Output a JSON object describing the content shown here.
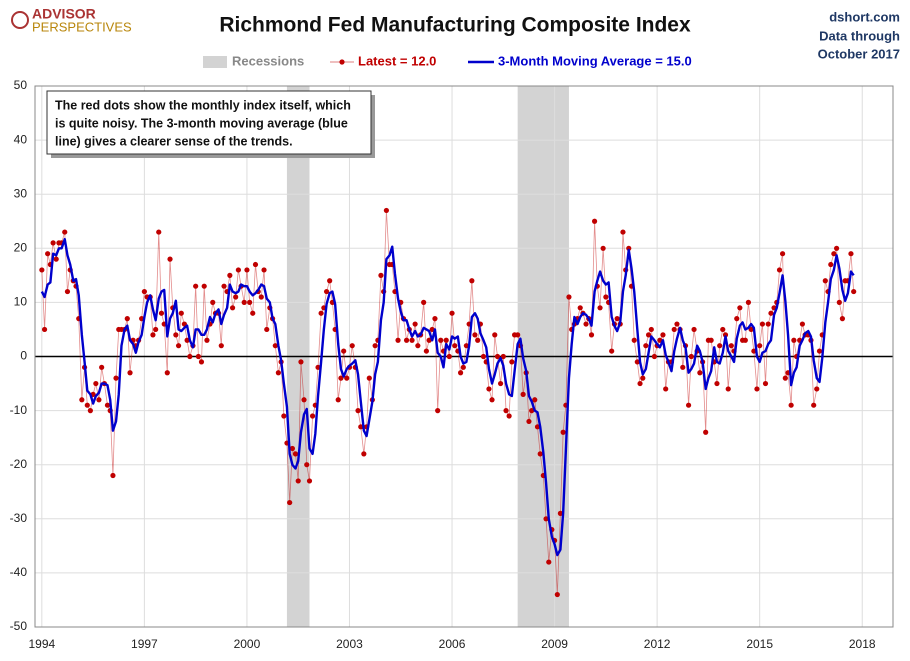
{
  "chart_data": {
    "type": "line",
    "title": "Richmond Fed Manufacturing Composite Index",
    "logo": [
      "ADVISOR",
      "PERSPECTIVES"
    ],
    "source": [
      "dshort.com",
      "Data through",
      "October 2017"
    ],
    "annotation": [
      "The red dots show the monthly  index itself, which",
      "is quite noisy. The 3-month moving average (blue",
      "line) gives a clearer sense of the trends."
    ],
    "recession_label": "Recessions",
    "recession_color": "#d3d3d3",
    "recessions": [
      [
        2001.17,
        2001.83
      ],
      [
        2007.92,
        2009.42
      ]
    ],
    "xlim": [
      1993.8,
      2018.9
    ],
    "xticks": [
      1994,
      1997,
      2000,
      2003,
      2006,
      2009,
      2012,
      2015,
      2018
    ],
    "ylim": [
      -50,
      50
    ],
    "yticks": [
      -50,
      -40,
      -30,
      -20,
      -10,
      0,
      10,
      20,
      30,
      40,
      50
    ],
    "grid": true,
    "x": [
      1994,
      1994.08,
      1994.17,
      1994.25,
      1994.33,
      1994.42,
      1994.5,
      1994.58,
      1994.67,
      1994.75,
      1994.83,
      1994.92,
      1995,
      1995.08,
      1995.17,
      1995.25,
      1995.33,
      1995.42,
      1995.5,
      1995.58,
      1995.67,
      1995.75,
      1995.83,
      1995.92,
      1996,
      1996.08,
      1996.17,
      1996.25,
      1996.33,
      1996.42,
      1996.5,
      1996.58,
      1996.67,
      1996.75,
      1996.83,
      1996.92,
      1997,
      1997.08,
      1997.17,
      1997.25,
      1997.33,
      1997.42,
      1997.5,
      1997.58,
      1997.67,
      1997.75,
      1997.83,
      1997.92,
      1998,
      1998.08,
      1998.17,
      1998.25,
      1998.33,
      1998.42,
      1998.5,
      1998.58,
      1998.67,
      1998.75,
      1998.83,
      1998.92,
      1999,
      1999.08,
      1999.17,
      1999.25,
      1999.33,
      1999.42,
      1999.5,
      1999.58,
      1999.67,
      1999.75,
      1999.83,
      1999.92,
      2000,
      2000.08,
      2000.17,
      2000.25,
      2000.33,
      2000.42,
      2000.5,
      2000.58,
      2000.67,
      2000.75,
      2000.83,
      2000.92,
      2001,
      2001.08,
      2001.17,
      2001.25,
      2001.33,
      2001.42,
      2001.5,
      2001.58,
      2001.67,
      2001.75,
      2001.83,
      2001.92,
      2002,
      2002.08,
      2002.17,
      2002.25,
      2002.33,
      2002.42,
      2002.5,
      2002.58,
      2002.67,
      2002.75,
      2002.83,
      2002.92,
      2003,
      2003.08,
      2003.17,
      2003.25,
      2003.33,
      2003.42,
      2003.5,
      2003.58,
      2003.67,
      2003.75,
      2003.83,
      2003.92,
      2004,
      2004.08,
      2004.17,
      2004.25,
      2004.33,
      2004.42,
      2004.5,
      2004.58,
      2004.67,
      2004.75,
      2004.83,
      2004.92,
      2005,
      2005.08,
      2005.17,
      2005.25,
      2005.33,
      2005.42,
      2005.5,
      2005.58,
      2005.67,
      2005.75,
      2005.83,
      2005.92,
      2006,
      2006.08,
      2006.17,
      2006.25,
      2006.33,
      2006.42,
      2006.5,
      2006.58,
      2006.67,
      2006.75,
      2006.83,
      2006.92,
      2007,
      2007.08,
      2007.17,
      2007.25,
      2007.33,
      2007.42,
      2007.5,
      2007.58,
      2007.67,
      2007.75,
      2007.83,
      2007.92,
      2008,
      2008.08,
      2008.17,
      2008.25,
      2008.33,
      2008.42,
      2008.5,
      2008.58,
      2008.67,
      2008.75,
      2008.83,
      2008.92,
      2009,
      2009.08,
      2009.17,
      2009.25,
      2009.33,
      2009.42,
      2009.5,
      2009.58,
      2009.67,
      2009.75,
      2009.83,
      2009.92,
      2010,
      2010.08,
      2010.17,
      2010.25,
      2010.33,
      2010.42,
      2010.5,
      2010.58,
      2010.67,
      2010.75,
      2010.83,
      2010.92,
      2011,
      2011.08,
      2011.17,
      2011.25,
      2011.33,
      2011.42,
      2011.5,
      2011.58,
      2011.67,
      2011.75,
      2011.83,
      2011.92,
      2012,
      2012.08,
      2012.17,
      2012.25,
      2012.33,
      2012.42,
      2012.5,
      2012.58,
      2012.67,
      2012.75,
      2012.83,
      2012.92,
      2013,
      2013.08,
      2013.17,
      2013.25,
      2013.33,
      2013.42,
      2013.5,
      2013.58,
      2013.67,
      2013.75,
      2013.83,
      2013.92,
      2014,
      2014.08,
      2014.17,
      2014.25,
      2014.33,
      2014.42,
      2014.5,
      2014.58,
      2014.67,
      2014.75,
      2014.83,
      2014.92,
      2015,
      2015.08,
      2015.17,
      2015.25,
      2015.33,
      2015.42,
      2015.5,
      2015.58,
      2015.67,
      2015.75,
      2015.83,
      2015.92,
      2016,
      2016.08,
      2016.17,
      2016.25,
      2016.33,
      2016.42,
      2016.5,
      2016.58,
      2016.67,
      2016.75,
      2016.83,
      2016.92,
      2017,
      2017.08,
      2017.17,
      2017.25,
      2017.33,
      2017.42,
      2017.5,
      2017.58,
      2017.67,
      2017.75
    ],
    "series": [
      {
        "name": "Latest = 12.0",
        "color": "#c00000",
        "values": [
          16,
          5,
          19,
          17,
          21,
          18,
          21,
          21,
          23,
          12,
          16,
          14,
          13,
          7,
          -8,
          -2,
          -9,
          -10,
          -7,
          -5,
          -8,
          -2,
          -5,
          -9,
          -10,
          -22,
          -4,
          5,
          5,
          5,
          7,
          -3,
          3,
          2,
          3,
          7,
          12,
          11,
          11,
          4,
          5,
          23,
          8,
          6,
          -3,
          18,
          9,
          4,
          2,
          8,
          6,
          3,
          0,
          2,
          13,
          0,
          -1,
          13,
          3,
          6,
          10,
          8,
          8,
          2,
          13,
          12,
          15,
          9,
          11,
          16,
          13,
          10,
          16,
          10,
          8,
          17,
          12,
          11,
          16,
          5,
          9,
          7,
          2,
          -3,
          -1,
          -11,
          -16,
          -27,
          -17,
          -18,
          -23,
          -1,
          -8,
          -20,
          -23,
          -11,
          -9,
          -2,
          8,
          9,
          12,
          14,
          10,
          5,
          -8,
          -4,
          1,
          -4,
          -2,
          2,
          -2,
          -10,
          -13,
          -18,
          -13,
          -4,
          -8,
          2,
          3,
          15,
          12,
          27,
          17,
          17,
          12,
          3,
          10,
          7,
          3,
          5,
          3,
          6,
          2,
          4,
          10,
          1,
          3,
          5,
          7,
          -10,
          3,
          1,
          3,
          0,
          8,
          2,
          1,
          -3,
          -2,
          2,
          6,
          14,
          4,
          3,
          6,
          0,
          -1,
          -6,
          -8,
          4,
          0,
          -5,
          0,
          -10,
          -11,
          -1,
          4,
          4,
          2,
          -7,
          -3,
          -12,
          -10,
          -8,
          -13,
          -18,
          -22,
          -30,
          -38,
          -32,
          -34,
          -44,
          -29,
          -14,
          -9,
          11,
          5,
          6,
          7,
          9,
          8,
          6,
          7,
          4,
          25,
          13,
          9,
          20,
          11,
          10,
          1,
          6,
          7,
          6,
          23,
          16,
          20,
          13,
          3,
          -1,
          -5,
          -4,
          2,
          4,
          5,
          0,
          2,
          3,
          4,
          -6,
          -1,
          -1,
          5,
          6,
          5,
          -2,
          2,
          -9,
          0,
          5,
          1,
          -3,
          -1,
          -14,
          3,
          3,
          -1,
          -5,
          2,
          5,
          4,
          -6,
          2,
          1,
          7,
          9,
          3,
          3,
          10,
          5,
          1,
          -6,
          2,
          6,
          -5,
          6,
          8,
          9,
          10,
          16,
          19,
          -4,
          -3,
          -9,
          3,
          0,
          3,
          6,
          4,
          4,
          3,
          -9,
          -6,
          1,
          4,
          14,
          12,
          17,
          19,
          20,
          10,
          7,
          14,
          14,
          19,
          12
        ]
      },
      {
        "name": "3-Month Moving Average = 15.0",
        "color": "#0000cc",
        "values": [
          12,
          11,
          13.3,
          13.7,
          19,
          18.7,
          20,
          20,
          21.7,
          18.7,
          17,
          14,
          14.3,
          11.3,
          4,
          -1,
          -6.3,
          -7,
          -8.7,
          -7.3,
          -6.7,
          -5,
          -5,
          -5.3,
          -8,
          -13.7,
          -12,
          -7,
          2,
          5,
          5.7,
          3,
          2.3,
          0.7,
          2.7,
          4,
          7.3,
          10,
          11.3,
          8.7,
          6.7,
          10.7,
          12,
          12.3,
          3.7,
          7,
          8,
          10.3,
          5,
          4.7,
          5.3,
          5.7,
          3,
          1.7,
          5,
          5,
          4,
          4,
          5,
          7.3,
          6.3,
          8,
          8.7,
          6,
          7.7,
          9,
          13.3,
          12,
          11.7,
          12,
          13.3,
          13,
          13,
          12,
          11.3,
          11.7,
          12.3,
          13.3,
          13,
          10.7,
          10,
          7,
          6,
          2,
          -0.7,
          -5,
          -9.3,
          -18,
          -20,
          -20.7,
          -19.3,
          -14,
          -10.7,
          -9.7,
          -17,
          -18,
          -14.3,
          -7.3,
          -1,
          5,
          9.7,
          11.7,
          12,
          9.7,
          2.3,
          -2.3,
          -3.7,
          -2.3,
          -1.7,
          -1.3,
          -0.7,
          -3.3,
          -8.3,
          -13.7,
          -14.7,
          -11.7,
          -8.3,
          -3.3,
          -1,
          6.7,
          10,
          18,
          18.7,
          20.3,
          15.3,
          10.7,
          8.3,
          6.7,
          6.7,
          5,
          3.7,
          4.7,
          3.7,
          4,
          5.3,
          5,
          4.7,
          3,
          5,
          0.7,
          0,
          -2,
          2.3,
          1.3,
          3.7,
          3.3,
          3.7,
          0,
          -1.3,
          -1,
          2,
          7.3,
          8,
          7,
          4.3,
          3,
          1.7,
          -2.3,
          -5,
          -3.3,
          -1.3,
          -0.3,
          -1.7,
          -5,
          -7,
          -7.3,
          -2.7,
          2.3,
          3.3,
          -0.3,
          -2.7,
          -7.3,
          -8.3,
          -10,
          -10.3,
          -13,
          -17.7,
          -23.3,
          -30,
          -33.3,
          -34.7,
          -36.7,
          -35.7,
          -29,
          -17.3,
          -4,
          2.3,
          7.3,
          6,
          7.3,
          8,
          7.7,
          7,
          5.7,
          12,
          14,
          15.7,
          14,
          13.3,
          13.7,
          7.3,
          5.7,
          4.7,
          6.3,
          12,
          15,
          19.7,
          16.3,
          12,
          5,
          -1,
          -3.3,
          -2.3,
          0.7,
          3.7,
          3,
          2.3,
          1.7,
          3,
          0.3,
          -1,
          -2.7,
          1,
          3.3,
          5.3,
          3,
          1.7,
          -3,
          -2.3,
          -1.3,
          2,
          1,
          -1,
          -6,
          -4,
          -2.7,
          1.7,
          -1,
          -1.3,
          0.7,
          3.7,
          1,
          0,
          -1,
          3.3,
          5.7,
          6.3,
          5,
          5.3,
          6,
          5.3,
          0,
          -1,
          0.7,
          1,
          2.3,
          3,
          7.7,
          9,
          11.7,
          15,
          10.3,
          4,
          -5.3,
          -3,
          -2,
          2,
          3,
          4.3,
          4.7,
          3.7,
          -0.7,
          -4,
          -4.7,
          -0.3,
          6.3,
          10,
          14.3,
          16,
          18.7,
          16.3,
          12.3,
          10.3,
          11.7,
          15.7,
          15
        ]
      }
    ]
  }
}
